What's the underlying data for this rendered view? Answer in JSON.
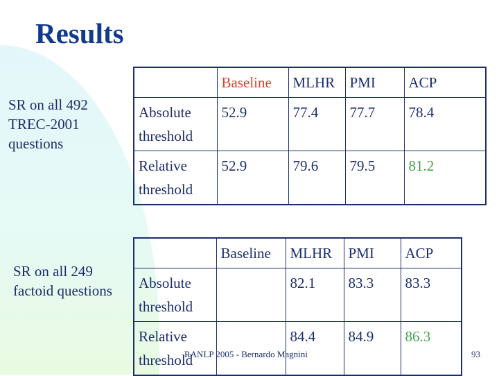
{
  "title": "Results",
  "sections": [
    {
      "label": "SR on all 492 TREC-2001 questions",
      "headers": [
        "",
        "Baseline",
        "MLHR",
        "PMI",
        "ACP"
      ],
      "rows": [
        [
          "Absolute threshold",
          "52.9",
          "77.4",
          "77.7",
          "78.4"
        ],
        [
          "Relative threshold",
          "52.9",
          "79.6",
          "79.5",
          "81.2"
        ]
      ]
    },
    {
      "label": "SR on all 249 factoid questions",
      "headers": [
        "",
        "Baseline",
        "MLHR",
        "PMI",
        "ACP"
      ],
      "rows": [
        [
          "Absolute threshold",
          "",
          "82.1",
          "83.3",
          "83.3"
        ],
        [
          "Relative threshold",
          "",
          "84.4",
          "84.9",
          "86.3"
        ]
      ]
    }
  ],
  "colors": {
    "title": "#113a8f",
    "text": "#1c2d6b",
    "baseline_header": "#d9442a",
    "best_value": "#3da34a"
  },
  "footer": "RANLP 2005 - Bernardo Magnini",
  "page_number": "93"
}
